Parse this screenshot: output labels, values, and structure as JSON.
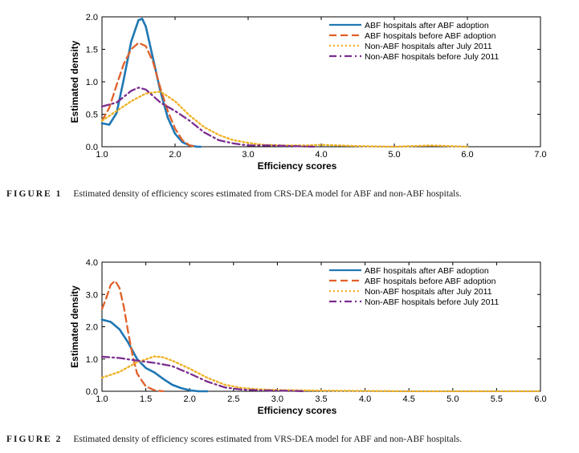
{
  "figures": [
    {
      "caption_label": "FIGURE 1",
      "caption_text": "Estimated density of efficiency scores estimated from CRS-DEA model for ABF and non-ABF hospitals.",
      "chart_data": {
        "type": "line",
        "title": "",
        "xlabel": "Efficiency scores",
        "ylabel": "Estimated density",
        "xlim": [
          1.0,
          7.0
        ],
        "ylim": [
          0.0,
          2.0
        ],
        "xticks": [
          1.0,
          2.0,
          3.0,
          4.0,
          5.0,
          6.0,
          7.0
        ],
        "xtick_labels": [
          "1.0",
          "2.0",
          "3.0",
          "4.0",
          "5.0",
          "6.0",
          "7.0"
        ],
        "yticks": [
          0.0,
          0.5,
          1.0,
          1.5,
          2.0
        ],
        "ytick_labels": [
          "0.0",
          "0.5",
          "1.0",
          "1.5",
          "2.0"
        ],
        "legend_position": "top-right",
        "series": [
          {
            "name": "ABF hospitals after ABF adoption",
            "color": "#1f77b4",
            "style": "solid",
            "x": [
              1.0,
              1.1,
              1.2,
              1.3,
              1.4,
              1.5,
              1.55,
              1.6,
              1.7,
              1.8,
              1.9,
              2.0,
              2.1,
              2.2,
              2.3,
              2.35
            ],
            "y": [
              0.36,
              0.34,
              0.52,
              1.05,
              1.62,
              1.95,
              1.97,
              1.85,
              1.35,
              0.85,
              0.45,
              0.2,
              0.07,
              0.02,
              0.0,
              0.0
            ]
          },
          {
            "name": "ABF hospitals before ABF adoption",
            "color": "#e0602a",
            "style": "dashed",
            "x": [
              1.0,
              1.1,
              1.2,
              1.3,
              1.4,
              1.5,
              1.6,
              1.7,
              1.8,
              1.9,
              2.0,
              2.1,
              2.2,
              2.3
            ],
            "y": [
              0.4,
              0.6,
              0.95,
              1.28,
              1.5,
              1.6,
              1.55,
              1.3,
              0.9,
              0.55,
              0.28,
              0.1,
              0.02,
              0.0
            ]
          },
          {
            "name": "Non-ABF hospitals after July 2011",
            "color": "#f0b020",
            "style": "dotted",
            "x": [
              1.0,
              1.2,
              1.4,
              1.6,
              1.8,
              2.0,
              2.2,
              2.4,
              2.6,
              2.8,
              3.0,
              3.2,
              3.5,
              3.8,
              4.0,
              4.5,
              5.0,
              5.5,
              6.0
            ],
            "y": [
              0.4,
              0.55,
              0.7,
              0.82,
              0.85,
              0.7,
              0.48,
              0.3,
              0.18,
              0.1,
              0.06,
              0.03,
              0.02,
              0.02,
              0.03,
              0.01,
              0.0,
              0.02,
              0.0
            ]
          },
          {
            "name": "Non-ABF hospitals before July 2011",
            "color": "#7b2d8e",
            "style": "dashdot",
            "x": [
              1.0,
              1.2,
              1.4,
              1.5,
              1.6,
              1.7,
              1.8,
              2.0,
              2.2,
              2.4,
              2.6,
              2.8,
              3.0,
              3.3,
              3.6,
              3.9
            ],
            "y": [
              0.62,
              0.68,
              0.86,
              0.91,
              0.88,
              0.78,
              0.68,
              0.55,
              0.4,
              0.22,
              0.1,
              0.05,
              0.02,
              0.02,
              0.01,
              0.0
            ]
          }
        ]
      }
    },
    {
      "caption_label": "FIGURE 2",
      "caption_text": "Estimated density of efficiency scores estimated from VRS-DEA model for ABF and non-ABF hospitals.",
      "chart_data": {
        "type": "line",
        "title": "",
        "xlabel": "Efficiency scores",
        "ylabel": "Estimated density",
        "xlim": [
          1.0,
          6.0
        ],
        "ylim": [
          0.0,
          4.0
        ],
        "xticks": [
          1.0,
          1.5,
          2.0,
          2.5,
          3.0,
          3.5,
          4.0,
          4.5,
          5.0,
          5.5,
          6.0
        ],
        "xtick_labels": [
          "1.0",
          "1.5",
          "2.0",
          "2.5",
          "3.0",
          "3.5",
          "4.0",
          "4.5",
          "5.0",
          "5.5",
          "6.0"
        ],
        "yticks": [
          0.0,
          1.0,
          2.0,
          3.0,
          4.0
        ],
        "ytick_labels": [
          "0.0",
          "1.0",
          "2.0",
          "3.0",
          "4.0"
        ],
        "legend_position": "top-right",
        "series": [
          {
            "name": "ABF hospitals after ABF adoption",
            "color": "#1f77b4",
            "style": "solid",
            "x": [
              1.0,
              1.1,
              1.2,
              1.3,
              1.4,
              1.5,
              1.6,
              1.7,
              1.8,
              1.9,
              2.0,
              2.1,
              2.2
            ],
            "y": [
              2.22,
              2.15,
              1.92,
              1.5,
              1.0,
              0.72,
              0.58,
              0.38,
              0.2,
              0.1,
              0.03,
              0.0,
              0.0
            ]
          },
          {
            "name": "ABF hospitals before ABF adoption",
            "color": "#e0602a",
            "style": "dashed",
            "x": [
              1.0,
              1.05,
              1.1,
              1.15,
              1.2,
              1.25,
              1.3,
              1.35,
              1.4,
              1.5,
              1.6,
              1.7
            ],
            "y": [
              2.55,
              2.9,
              3.3,
              3.42,
              3.2,
              2.6,
              1.8,
              1.1,
              0.55,
              0.15,
              0.03,
              0.0
            ]
          },
          {
            "name": "Non-ABF hospitals after July 2011",
            "color": "#f0b020",
            "style": "dotted",
            "x": [
              1.0,
              1.2,
              1.4,
              1.6,
              1.7,
              1.8,
              2.0,
              2.2,
              2.4,
              2.6,
              2.8,
              3.0,
              3.5,
              4.0,
              4.5,
              5.0,
              5.5,
              6.0
            ],
            "y": [
              0.42,
              0.6,
              0.9,
              1.08,
              1.05,
              0.95,
              0.7,
              0.42,
              0.2,
              0.1,
              0.06,
              0.04,
              0.02,
              0.01,
              0.0,
              0.0,
              0.0,
              0.0
            ]
          },
          {
            "name": "Non-ABF hospitals before July 2011",
            "color": "#7b2d8e",
            "style": "dashdot",
            "x": [
              1.0,
              1.2,
              1.4,
              1.6,
              1.8,
              2.0,
              2.2,
              2.4,
              2.6,
              2.8,
              3.0,
              3.2,
              3.3
            ],
            "y": [
              1.07,
              1.03,
              0.95,
              0.88,
              0.78,
              0.55,
              0.3,
              0.12,
              0.05,
              0.03,
              0.02,
              0.01,
              0.0
            ]
          }
        ]
      }
    }
  ]
}
